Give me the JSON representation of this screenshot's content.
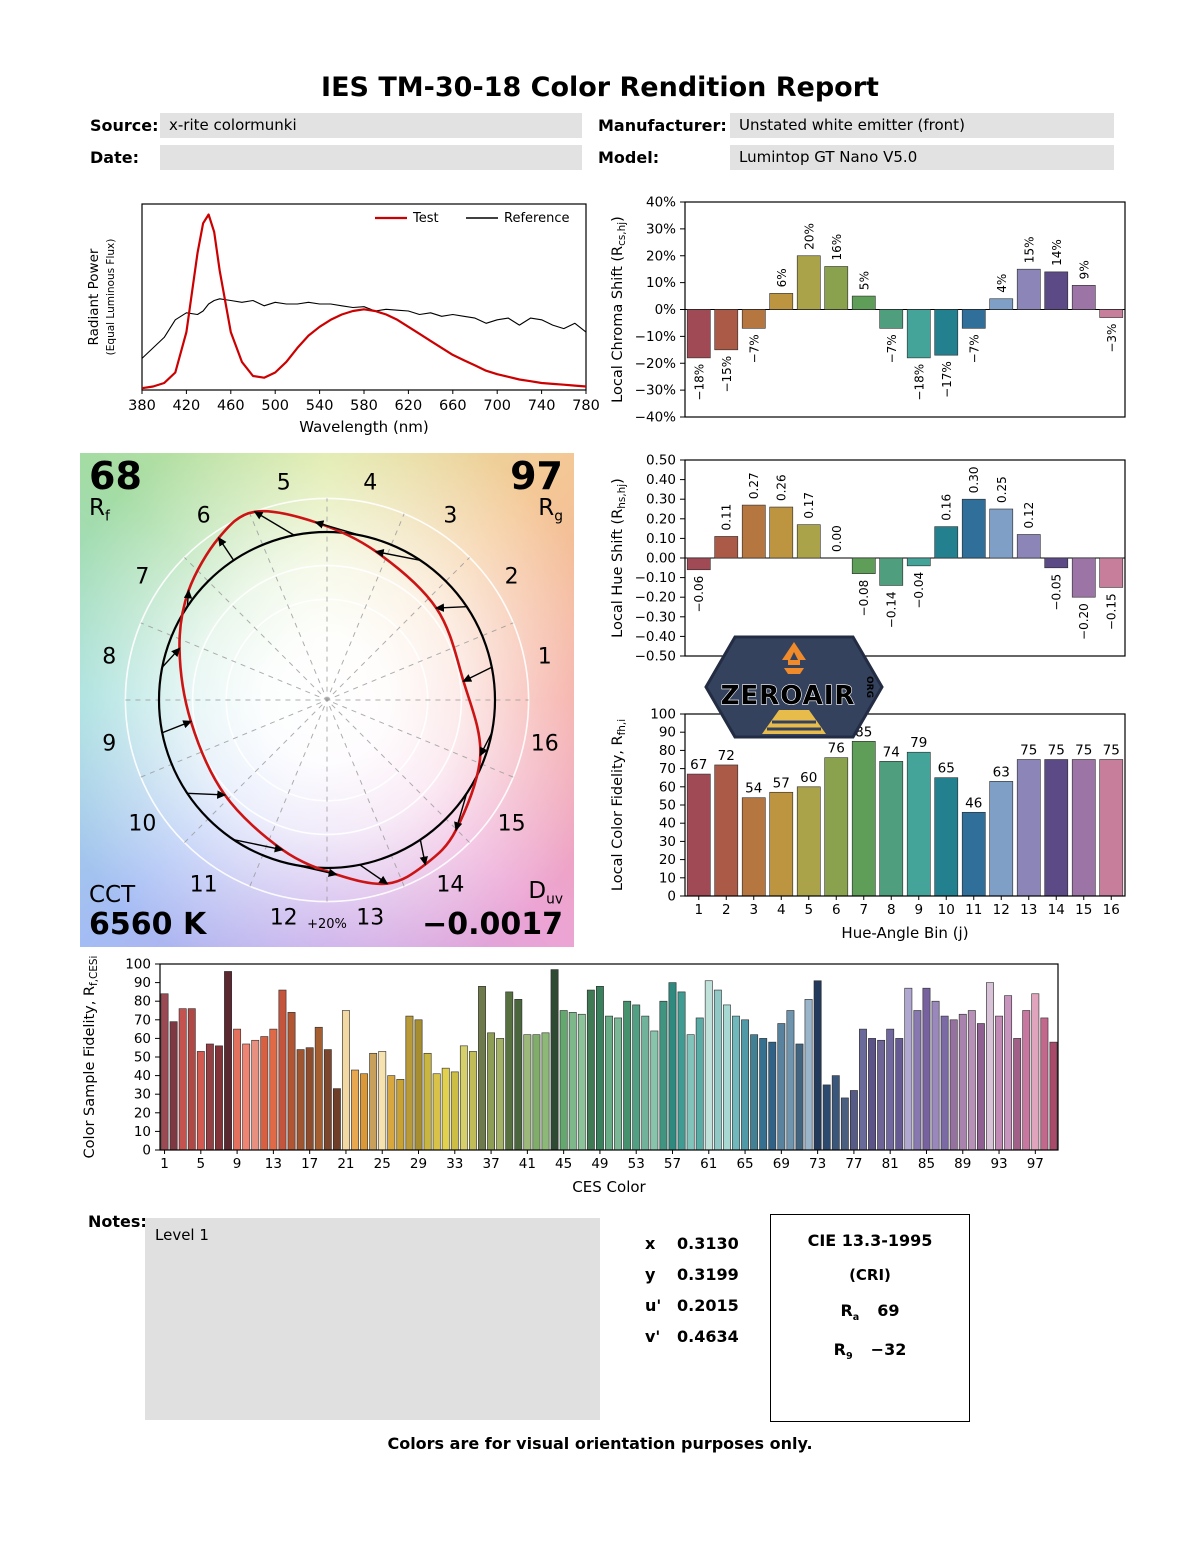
{
  "report": {
    "title": "IES TM-30-18 Color Rendition Report",
    "fields": {
      "source_label": "Source:",
      "source_value": "x-rite colormunki",
      "manufacturer_label": "Manufacturer:",
      "manufacturer_value": "Unstated white emitter (front)",
      "date_label": "Date:",
      "date_value": "",
      "model_label": "Model:",
      "model_value": "Lumintop GT Nano V5.0"
    },
    "footer": "Colors are for visual orientation purposes only."
  },
  "hue_bin_colors": [
    "#a04a55",
    "#ab5a47",
    "#b5763f",
    "#bd9440",
    "#aaa34a",
    "#8aa24e",
    "#5f9e58",
    "#4f9f7e",
    "#44a49a",
    "#23808f",
    "#2f6f99",
    "#7f9fc6",
    "#8c86b8",
    "#5c4a86",
    "#9d74a6",
    "#c77e9b"
  ],
  "chart_data": [
    {
      "name": "spd",
      "type": "line",
      "xlabel": "Wavelength (nm)",
      "ylabel_line1": "Radiant Power",
      "ylabel_line2": "(Equal Luminous Flux)",
      "xlim": [
        380,
        780
      ],
      "ylim": [
        0,
        1.06
      ],
      "xticks": [
        380,
        420,
        460,
        500,
        540,
        580,
        620,
        660,
        700,
        740,
        780
      ],
      "x": [
        380,
        390,
        400,
        410,
        420,
        430,
        435,
        440,
        445,
        450,
        460,
        470,
        480,
        490,
        500,
        510,
        520,
        530,
        540,
        550,
        560,
        570,
        580,
        590,
        600,
        610,
        620,
        630,
        640,
        650,
        660,
        670,
        680,
        690,
        700,
        710,
        720,
        730,
        740,
        750,
        760,
        770,
        780
      ],
      "series": [
        {
          "name": "Test",
          "color": "#cc0000",
          "width": 2.2,
          "y": [
            0.01,
            0.02,
            0.04,
            0.1,
            0.33,
            0.78,
            0.95,
            1.0,
            0.9,
            0.68,
            0.33,
            0.16,
            0.08,
            0.07,
            0.1,
            0.16,
            0.24,
            0.31,
            0.36,
            0.4,
            0.43,
            0.45,
            0.46,
            0.45,
            0.43,
            0.4,
            0.36,
            0.32,
            0.28,
            0.24,
            0.2,
            0.17,
            0.14,
            0.11,
            0.09,
            0.075,
            0.06,
            0.05,
            0.04,
            0.035,
            0.03,
            0.025,
            0.02
          ]
        },
        {
          "name": "Reference",
          "color": "#000000",
          "width": 1.1,
          "y": [
            0.18,
            0.24,
            0.3,
            0.4,
            0.44,
            0.43,
            0.45,
            0.49,
            0.51,
            0.52,
            0.51,
            0.5,
            0.51,
            0.48,
            0.5,
            0.49,
            0.49,
            0.5,
            0.49,
            0.49,
            0.48,
            0.47,
            0.475,
            0.45,
            0.46,
            0.455,
            0.45,
            0.43,
            0.44,
            0.42,
            0.43,
            0.42,
            0.41,
            0.38,
            0.4,
            0.41,
            0.37,
            0.41,
            0.4,
            0.37,
            0.35,
            0.38,
            0.33
          ]
        }
      ]
    },
    {
      "name": "local_chroma_shift",
      "type": "bar",
      "ylabel_parts": [
        [
          "Local Chroma Shift (R",
          0
        ],
        [
          "cs,hj",
          1
        ],
        [
          ")",
          0
        ]
      ],
      "ylim": [
        -40,
        40
      ],
      "yticks": [
        [
          40,
          "40%"
        ],
        [
          30,
          "30%"
        ],
        [
          20,
          "20%"
        ],
        [
          10,
          "10%"
        ],
        [
          0,
          "0%"
        ],
        [
          -10,
          "−10%"
        ],
        [
          -20,
          "−20%"
        ],
        [
          -30,
          "−30%"
        ],
        [
          -40,
          "−40%"
        ]
      ],
      "categories": [
        1,
        2,
        3,
        4,
        5,
        6,
        7,
        8,
        9,
        10,
        11,
        12,
        13,
        14,
        15,
        16
      ],
      "values": [
        -18,
        -15,
        -7,
        6,
        20,
        16,
        5,
        -7,
        -18,
        -17,
        -7,
        4,
        15,
        14,
        9,
        -3
      ],
      "labels": [
        "−18%",
        "−15%",
        "−7%",
        "6%",
        "20%",
        "16%",
        "5%",
        "−7%",
        "−18%",
        "−17%",
        "−7%",
        "4%",
        "15%",
        "14%",
        "9%",
        "−3%"
      ]
    },
    {
      "name": "local_hue_shift",
      "type": "bar",
      "ylabel_parts": [
        [
          "Local Hue Shift (R",
          0
        ],
        [
          "hs,hj",
          1
        ],
        [
          ")",
          0
        ]
      ],
      "ylim": [
        -0.5,
        0.5
      ],
      "yticks": [
        [
          0.5,
          "0.50"
        ],
        [
          0.4,
          "0.40"
        ],
        [
          0.3,
          "0.30"
        ],
        [
          0.2,
          "0.20"
        ],
        [
          0.1,
          "0.10"
        ],
        [
          0,
          "0.00"
        ],
        [
          -0.1,
          "−0.10"
        ],
        [
          -0.2,
          "−0.20"
        ],
        [
          -0.3,
          "−0.30"
        ],
        [
          -0.4,
          "−0.40"
        ],
        [
          -0.5,
          "−0.50"
        ]
      ],
      "categories": [
        1,
        2,
        3,
        4,
        5,
        6,
        7,
        8,
        9,
        10,
        11,
        12,
        13,
        14,
        15,
        16
      ],
      "values": [
        -0.06,
        0.11,
        0.27,
        0.26,
        0.17,
        0.0,
        -0.08,
        -0.14,
        -0.04,
        0.16,
        0.3,
        0.25,
        0.12,
        -0.05,
        -0.2,
        -0.15
      ],
      "labels": [
        "−0.06",
        "0.11",
        "0.27",
        "0.26",
        "0.17",
        "0.00",
        "−0.08",
        "−0.14",
        "−0.04",
        "0.16",
        "0.30",
        "0.25",
        "0.12",
        "−0.05",
        "−0.20",
        "−0.15"
      ]
    },
    {
      "name": "local_color_fidelity",
      "type": "bar",
      "ylabel_parts": [
        [
          "Local Color Fidelity, R",
          0
        ],
        [
          "fh,i",
          1
        ]
      ],
      "xlabel": "Hue-Angle Bin (j)",
      "ylim": [
        0,
        100
      ],
      "yticks": [
        [
          100,
          "100"
        ],
        [
          90,
          "90"
        ],
        [
          80,
          "80"
        ],
        [
          70,
          "70"
        ],
        [
          60,
          "60"
        ],
        [
          50,
          "50"
        ],
        [
          40,
          "40"
        ],
        [
          30,
          "30"
        ],
        [
          20,
          "20"
        ],
        [
          10,
          "10"
        ],
        [
          0,
          "0"
        ]
      ],
      "categories": [
        1,
        2,
        3,
        4,
        5,
        6,
        7,
        8,
        9,
        10,
        11,
        12,
        13,
        14,
        15,
        16
      ],
      "values": [
        67,
        72,
        54,
        57,
        60,
        76,
        85,
        74,
        79,
        65,
        46,
        63,
        75,
        75,
        75,
        75
      ],
      "labels": [
        "67",
        "72",
        "54",
        "57",
        "60",
        "76",
        "85",
        "74",
        "79",
        "65",
        "46",
        "63",
        "75",
        "75",
        "75",
        "75"
      ],
      "xticks": [
        [
          0,
          "1"
        ],
        [
          1,
          "2"
        ],
        [
          2,
          "3"
        ],
        [
          3,
          "4"
        ],
        [
          4,
          "5"
        ],
        [
          5,
          "6"
        ],
        [
          6,
          "7"
        ],
        [
          7,
          "8"
        ],
        [
          8,
          "9"
        ],
        [
          9,
          "10"
        ],
        [
          10,
          "11"
        ],
        [
          11,
          "12"
        ],
        [
          12,
          "13"
        ],
        [
          13,
          "14"
        ],
        [
          14,
          "15"
        ],
        [
          15,
          "16"
        ]
      ]
    },
    {
      "name": "ces",
      "type": "bar",
      "ylabel_parts": [
        [
          "Color Sample Fidelity, R",
          0
        ],
        [
          "f,CESi",
          1
        ]
      ],
      "xlabel": "CES Color",
      "ylim": [
        0,
        100
      ],
      "yticks": [
        [
          100,
          "100"
        ],
        [
          90,
          "90"
        ],
        [
          80,
          "80"
        ],
        [
          70,
          "70"
        ],
        [
          60,
          "60"
        ],
        [
          50,
          "50"
        ],
        [
          40,
          "40"
        ],
        [
          30,
          "30"
        ],
        [
          20,
          "20"
        ],
        [
          10,
          "10"
        ],
        [
          0,
          "0"
        ]
      ],
      "xticks": [
        [
          0,
          "1"
        ],
        [
          4,
          "5"
        ],
        [
          8,
          "9"
        ],
        [
          12,
          "13"
        ],
        [
          16,
          "17"
        ],
        [
          20,
          "21"
        ],
        [
          24,
          "25"
        ],
        [
          28,
          "29"
        ],
        [
          32,
          "33"
        ],
        [
          36,
          "37"
        ],
        [
          40,
          "41"
        ],
        [
          44,
          "45"
        ],
        [
          48,
          "49"
        ],
        [
          52,
          "53"
        ],
        [
          56,
          "57"
        ],
        [
          60,
          "61"
        ],
        [
          64,
          "65"
        ],
        [
          68,
          "69"
        ],
        [
          72,
          "73"
        ],
        [
          76,
          "77"
        ],
        [
          80,
          "81"
        ],
        [
          84,
          "85"
        ],
        [
          88,
          "89"
        ],
        [
          92,
          "93"
        ],
        [
          96,
          "97"
        ]
      ],
      "values": [
        84,
        69,
        76,
        76,
        53,
        57,
        56,
        96,
        65,
        57,
        59,
        61,
        65,
        86,
        74,
        54,
        55,
        66,
        54,
        33,
        75,
        43,
        41,
        52,
        53,
        40,
        38,
        72,
        70,
        52,
        41,
        44,
        42,
        56,
        53,
        88,
        63,
        60,
        85,
        81,
        62,
        62,
        63,
        97,
        75,
        74,
        73,
        86,
        88,
        72,
        71,
        80,
        78,
        72,
        64,
        80,
        90,
        85,
        62,
        71,
        91,
        86,
        78,
        72,
        70,
        62,
        60,
        58,
        68,
        75,
        57,
        81,
        91,
        35,
        40,
        28,
        32,
        65,
        60,
        59,
        65,
        60,
        87,
        75,
        87,
        80,
        72,
        70,
        73,
        75,
        68,
        90,
        72,
        83,
        60,
        75,
        84,
        71,
        58
      ],
      "colors": [
        "#9a4a52",
        "#7e3842",
        "#c4524e",
        "#b04846",
        "#d25a50",
        "#943f44",
        "#833338",
        "#5c2830",
        "#e4705e",
        "#ef8472",
        "#e89080",
        "#d85f40",
        "#e06a48",
        "#c5543c",
        "#b25532",
        "#9e5530",
        "#8e4c2c",
        "#a55e30",
        "#7c462c",
        "#6e3e28",
        "#f2d9a4",
        "#e8a850",
        "#da9838",
        "#c8a05c",
        "#f5e2ae",
        "#d8a83e",
        "#c8a232",
        "#b89a38",
        "#a68e30",
        "#c8b640",
        "#d8c348",
        "#e2d14e",
        "#ccbe44",
        "#d6d06c",
        "#c0bc58",
        "#6e7a4c",
        "#8e9e54",
        "#a4b268",
        "#567040",
        "#4a663c",
        "#9cb87a",
        "#80ae6a",
        "#8cb878",
        "#2f4a32",
        "#64a870",
        "#7cb88a",
        "#8cc49a",
        "#407a54",
        "#38815c",
        "#68ad85",
        "#7ab896",
        "#46926e",
        "#52a083",
        "#70b29a",
        "#88c4ac",
        "#409480",
        "#2e8a7e",
        "#409c92",
        "#80c4bc",
        "#58aca6",
        "#c0e0da",
        "#90c8c6",
        "#a8d8d2",
        "#70b8bc",
        "#509aa8",
        "#448094",
        "#357090",
        "#306288",
        "#58829e",
        "#6e94ae",
        "#42647e",
        "#9ab4ca",
        "#223a5c",
        "#2c4a6e",
        "#3a567a",
        "#4a5e80",
        "#565a86",
        "#6a6a9a",
        "#5c5488",
        "#6e6496",
        "#7268a0",
        "#665a92",
        "#b0a8d0",
        "#8878b0",
        "#77619e",
        "#9a88bc",
        "#7c6aa4",
        "#94719e",
        "#a983ad",
        "#b891b8",
        "#8f5f92",
        "#d8c2d8",
        "#c08ab4",
        "#c795bd",
        "#a06088",
        "#c777a0",
        "#e0a4bc",
        "#c2688c",
        "#a84a6a"
      ]
    },
    {
      "name": "cvg",
      "type": "vector",
      "rf_label_main": "R",
      "rf_label_sub": "f",
      "rf_value": "68",
      "rg_label_main": "R",
      "rg_label_sub": "g",
      "rg_value": "97",
      "cct_label": "CCT",
      "cct_value": "6560 K",
      "duv_label_main": "D",
      "duv_label_sub": "uv",
      "duv_value": "−0.0017",
      "ring_label": "+20%",
      "bin_numbers": [
        1,
        2,
        3,
        4,
        5,
        6,
        7,
        8,
        9,
        10,
        11,
        12,
        13,
        14,
        15,
        16
      ],
      "reference_color": "#000000",
      "test_color": "#cc1414"
    }
  ],
  "notes": {
    "label": "Notes:",
    "value": "Level 1"
  },
  "chromaticity": {
    "rows": [
      {
        "label": "x",
        "value": "0.3130"
      },
      {
        "label": "y",
        "value": "0.3199"
      },
      {
        "label": "u'",
        "value": "0.2015"
      },
      {
        "label": "v'",
        "value": "0.4634"
      }
    ]
  },
  "cri": {
    "title": "CIE 13.3-1995",
    "subtitle": "(CRI)",
    "ra": {
      "main": "R",
      "sub": "a",
      "value": "69"
    },
    "r9": {
      "main": "R",
      "sub": "9",
      "value": "−32"
    }
  },
  "logo": {
    "main": "ZEROAIR",
    "sub": "ORG",
    "badge_color": "#35425e",
    "accent_color": "#ef8b2a",
    "beam_color": "#e8bc4a"
  }
}
